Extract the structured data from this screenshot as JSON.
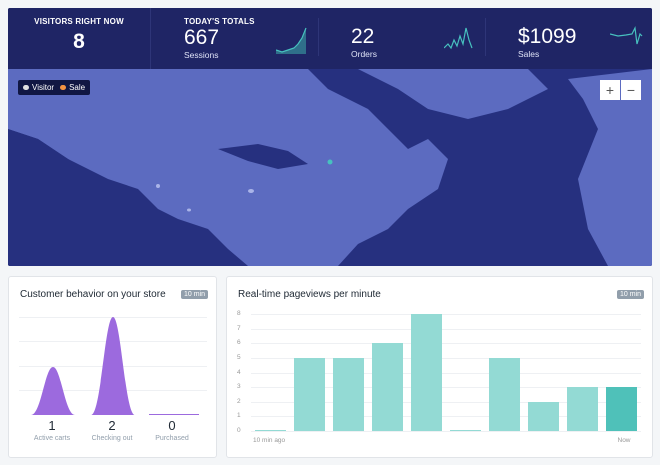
{
  "header": {
    "visitors_label": "VISITORS RIGHT NOW",
    "visitors_value": "8",
    "totals_label": "TODAY'S TOTALS",
    "sessions_value": "667",
    "sessions_label": "Sessions",
    "orders_value": "22",
    "orders_label": "Orders",
    "sales_value": "$1099",
    "sales_label": "Sales"
  },
  "map": {
    "legend_visitor": "Visitor",
    "legend_sale": "Sale",
    "zoom_in": "+",
    "zoom_out": "−",
    "colors": {
      "ocean": "#26307f",
      "land": "#5c6bc0",
      "visitor": "#e0e0e0",
      "sale": "#f49342"
    }
  },
  "customer_behavior": {
    "title": "Customer behavior on your store",
    "badge": "10 min",
    "steps": [
      {
        "value": "1",
        "label": "Active carts"
      },
      {
        "value": "2",
        "label": "Checking out"
      },
      {
        "value": "0",
        "label": "Purchased"
      }
    ],
    "color": "#9c6ade"
  },
  "pageviews": {
    "title": "Real-time pageviews per minute",
    "badge": "10 min"
  },
  "chart_data": {
    "type": "bar",
    "title": "Real-time pageviews per minute",
    "categories": [
      "10 min ago",
      "",
      "",
      "",
      "",
      "",
      "",
      "",
      "",
      "Now"
    ],
    "values": [
      0,
      5,
      5,
      6,
      8,
      0,
      5,
      2,
      3,
      3
    ],
    "yticks": [
      "0",
      "1",
      "2",
      "3",
      "4",
      "5",
      "6",
      "7",
      "8"
    ],
    "ylim": [
      0,
      8
    ],
    "grid": true,
    "colors": {
      "bar": "#93dad4",
      "current": "#4fc1b9"
    }
  }
}
